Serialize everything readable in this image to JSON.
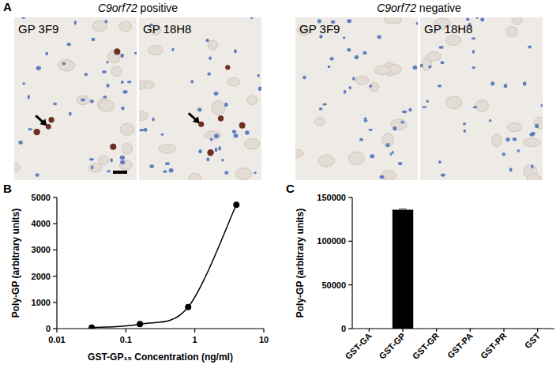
{
  "panel_a": {
    "panel_label": "A",
    "groups": [
      {
        "gene": "C9orf72",
        "status": "positive",
        "images": [
          "GP 3F9",
          "GP 18H8"
        ]
      },
      {
        "gene": "C9orf72",
        "status": "negative",
        "images": [
          "GP 3F9",
          "GP 18H8"
        ]
      }
    ]
  },
  "chart_data": [
    {
      "panel_label": "B",
      "type": "line",
      "x_label": "GST-GP₁₅ Concentration  (ng/ml)",
      "y_label": "Poly-GP (arbitrary units)",
      "x": [
        0.032,
        0.16,
        0.8,
        4
      ],
      "values": [
        40,
        170,
        820,
        4720
      ],
      "log": "x",
      "xlim": [
        0.01,
        10
      ],
      "xticks": [
        0.01,
        0.1,
        1,
        10
      ],
      "ylim": [
        0,
        5000
      ],
      "yticks": [
        0,
        1000,
        2000,
        3000,
        4000,
        5000
      ],
      "color": "#000000",
      "marker": "circle",
      "grid": false
    },
    {
      "panel_label": "C",
      "type": "bar",
      "y_label": "Poly-GP (arbitrary units)",
      "categories": [
        "GST-GA",
        "GST-GP",
        "GST-GR",
        "GST-PA",
        "GST-PR",
        "GST"
      ],
      "values": [
        0,
        136000,
        0,
        0,
        0,
        0
      ],
      "errors": [
        0,
        1000,
        0,
        0,
        0,
        0
      ],
      "ylim": [
        0,
        150000
      ],
      "yticks": [
        0,
        50000,
        100000,
        150000
      ],
      "color": "#000000",
      "grid": false
    }
  ]
}
